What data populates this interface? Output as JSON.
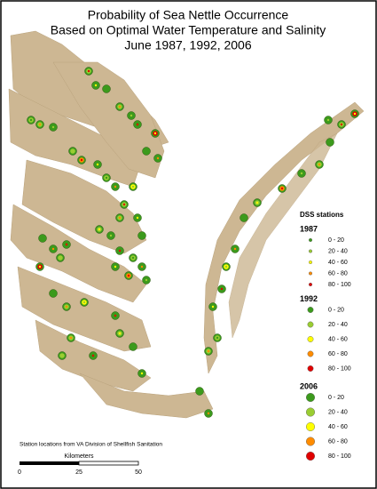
{
  "title": [
    "Probability of Sea Nettle Occurrence",
    "Based on Optimal Water Temperature and Salinity",
    "June 1987, 1992, 2006"
  ],
  "legend": {
    "title": "DSS stations",
    "colors": [
      "#3c9a1c",
      "#9acd32",
      "#ffff00",
      "#ff8c00",
      "#e00000"
    ],
    "groups": [
      {
        "year": "1987",
        "items": [
          "0 - 20",
          "20 - 40",
          "40 - 60",
          "60 - 80",
          "80 - 100"
        ]
      },
      {
        "year": "1992",
        "items": [
          "0 - 20",
          "20 - 40",
          "40 - 60",
          "60 - 80",
          "80 - 100"
        ]
      },
      {
        "year": "2006",
        "items": [
          "0 - 20",
          "20 - 40",
          "40 - 60",
          "60 - 80",
          "80 - 100"
        ]
      }
    ]
  },
  "source": "Station locations from VA Division of Shellfish Sanitation",
  "scale_bar": {
    "unit": "Kilometers",
    "ticks": [
      "0",
      "25",
      "50"
    ]
  }
}
